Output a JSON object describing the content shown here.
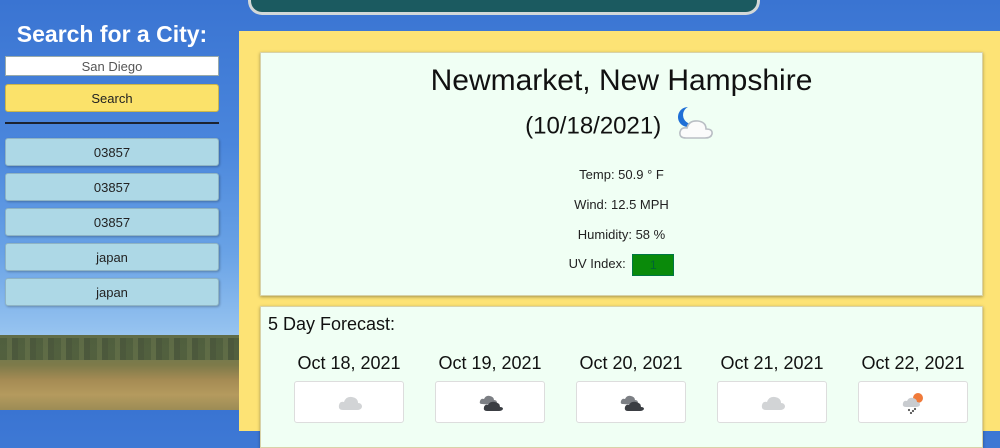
{
  "sidebar": {
    "title": "Search for a City:",
    "search_input_value": "San Diego",
    "search_button_label": "Search",
    "history": [
      "03857",
      "03857",
      "03857",
      "japan",
      "japan"
    ]
  },
  "current": {
    "city": "Newmarket, New Hampshire",
    "date": "(10/18/2021)",
    "icon": "night-cloudy-icon",
    "temp": "Temp: 50.9 ° F",
    "wind": "Wind: 12.5 MPH",
    "humidity": "Humidity: 58 %",
    "uv_label": "UV Index:",
    "uv_value": "1",
    "uv_color": "#0a8a0a"
  },
  "forecast": {
    "title": "5 Day Forecast:",
    "days": [
      {
        "date": "Oct 18, 2021",
        "icon": "cloud-icon"
      },
      {
        "date": "Oct 19, 2021",
        "icon": "broken-clouds-icon"
      },
      {
        "date": "Oct 20, 2021",
        "icon": "broken-clouds-icon"
      },
      {
        "date": "Oct 21, 2021",
        "icon": "cloud-icon"
      },
      {
        "date": "Oct 22, 2021",
        "icon": "rain-sun-icon"
      }
    ]
  }
}
